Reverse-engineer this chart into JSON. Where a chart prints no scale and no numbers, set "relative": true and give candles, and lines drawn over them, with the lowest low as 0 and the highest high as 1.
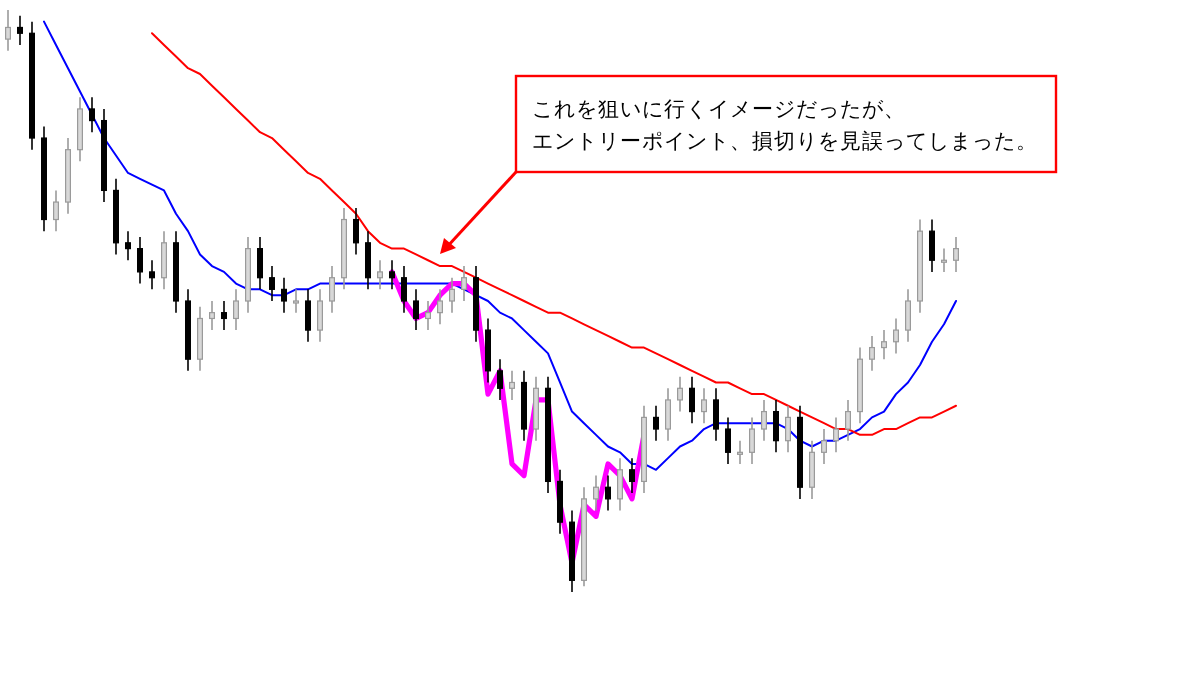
{
  "chart_data": {
    "type": "candlestick",
    "relative": true,
    "categories": [
      null,
      null,
      null,
      null,
      null,
      null,
      null,
      null,
      null,
      null,
      null,
      null,
      null,
      null,
      null,
      null,
      null,
      null,
      null,
      null,
      null,
      null,
      null,
      null,
      null,
      null,
      null,
      null,
      null,
      null,
      null,
      null,
      null,
      null,
      null,
      null,
      null,
      null,
      null,
      null,
      null,
      null,
      null,
      null,
      null,
      null,
      null,
      null,
      null,
      null,
      null,
      null,
      null,
      null,
      null,
      null,
      null,
      null,
      null,
      null,
      null,
      null,
      null,
      null,
      null,
      null,
      null,
      null,
      null,
      null,
      null,
      null,
      null,
      null,
      null,
      null,
      null,
      null,
      null,
      null
    ],
    "ohlc": [
      [
        0.95,
        1.0,
        0.93,
        0.97
      ],
      [
        0.97,
        0.99,
        0.94,
        0.96
      ],
      [
        0.96,
        0.98,
        0.76,
        0.78
      ],
      [
        0.78,
        0.8,
        0.62,
        0.64
      ],
      [
        0.64,
        0.69,
        0.62,
        0.67
      ],
      [
        0.67,
        0.78,
        0.65,
        0.76
      ],
      [
        0.76,
        0.85,
        0.74,
        0.83
      ],
      [
        0.83,
        0.85,
        0.79,
        0.81
      ],
      [
        0.81,
        0.83,
        0.67,
        0.69
      ],
      [
        0.69,
        0.71,
        0.58,
        0.6
      ],
      [
        0.6,
        0.62,
        0.57,
        0.59
      ],
      [
        0.59,
        0.61,
        0.53,
        0.55
      ],
      [
        0.55,
        0.57,
        0.52,
        0.54
      ],
      [
        0.54,
        0.62,
        0.52,
        0.6
      ],
      [
        0.6,
        0.62,
        0.48,
        0.5
      ],
      [
        0.5,
        0.52,
        0.38,
        0.4
      ],
      [
        0.4,
        0.49,
        0.38,
        0.47
      ],
      [
        0.47,
        0.5,
        0.45,
        0.48
      ],
      [
        0.48,
        0.5,
        0.45,
        0.47
      ],
      [
        0.47,
        0.52,
        0.45,
        0.5
      ],
      [
        0.5,
        0.61,
        0.48,
        0.59
      ],
      [
        0.59,
        0.61,
        0.52,
        0.54
      ],
      [
        0.54,
        0.56,
        0.5,
        0.52
      ],
      [
        0.52,
        0.54,
        0.48,
        0.5
      ],
      [
        0.5,
        0.52,
        0.48,
        0.5
      ],
      [
        0.5,
        0.52,
        0.43,
        0.45
      ],
      [
        0.45,
        0.52,
        0.43,
        0.5
      ],
      [
        0.5,
        0.56,
        0.48,
        0.54
      ],
      [
        0.54,
        0.66,
        0.52,
        0.64
      ],
      [
        0.64,
        0.66,
        0.58,
        0.6
      ],
      [
        0.6,
        0.62,
        0.52,
        0.54
      ],
      [
        0.54,
        0.57,
        0.52,
        0.55
      ],
      [
        0.55,
        0.57,
        0.52,
        0.54
      ],
      [
        0.54,
        0.56,
        0.48,
        0.5
      ],
      [
        0.5,
        0.52,
        0.45,
        0.47
      ],
      [
        0.47,
        0.5,
        0.45,
        0.48
      ],
      [
        0.48,
        0.52,
        0.46,
        0.5
      ],
      [
        0.5,
        0.54,
        0.48,
        0.52
      ],
      [
        0.52,
        0.56,
        0.5,
        0.54
      ],
      [
        0.54,
        0.56,
        0.43,
        0.45
      ],
      [
        0.45,
        0.47,
        0.36,
        0.38
      ],
      [
        0.38,
        0.4,
        0.33,
        0.35
      ],
      [
        0.35,
        0.38,
        0.33,
        0.36
      ],
      [
        0.36,
        0.38,
        0.26,
        0.28
      ],
      [
        0.28,
        0.37,
        0.26,
        0.35
      ],
      [
        0.35,
        0.37,
        0.17,
        0.19
      ],
      [
        0.19,
        0.21,
        0.1,
        0.12
      ],
      [
        0.12,
        0.14,
        0.0,
        0.02
      ],
      [
        0.02,
        0.18,
        0.01,
        0.16
      ],
      [
        0.16,
        0.2,
        0.14,
        0.18
      ],
      [
        0.18,
        0.2,
        0.14,
        0.16
      ],
      [
        0.16,
        0.23,
        0.14,
        0.21
      ],
      [
        0.21,
        0.23,
        0.17,
        0.19
      ],
      [
        0.19,
        0.32,
        0.17,
        0.3
      ],
      [
        0.3,
        0.32,
        0.26,
        0.28
      ],
      [
        0.28,
        0.35,
        0.26,
        0.33
      ],
      [
        0.33,
        0.37,
        0.31,
        0.35
      ],
      [
        0.35,
        0.37,
        0.29,
        0.31
      ],
      [
        0.31,
        0.35,
        0.29,
        0.33
      ],
      [
        0.33,
        0.35,
        0.26,
        0.28
      ],
      [
        0.28,
        0.3,
        0.22,
        0.24
      ],
      [
        0.24,
        0.26,
        0.22,
        0.24
      ],
      [
        0.24,
        0.3,
        0.22,
        0.28
      ],
      [
        0.28,
        0.33,
        0.26,
        0.31
      ],
      [
        0.31,
        0.33,
        0.24,
        0.26
      ],
      [
        0.26,
        0.32,
        0.24,
        0.3
      ],
      [
        0.3,
        0.32,
        0.16,
        0.18
      ],
      [
        0.18,
        0.26,
        0.16,
        0.24
      ],
      [
        0.24,
        0.28,
        0.22,
        0.26
      ],
      [
        0.26,
        0.3,
        0.24,
        0.28
      ],
      [
        0.28,
        0.33,
        0.26,
        0.31
      ],
      [
        0.31,
        0.42,
        0.29,
        0.4
      ],
      [
        0.4,
        0.44,
        0.38,
        0.42
      ],
      [
        0.42,
        0.45,
        0.4,
        0.43
      ],
      [
        0.43,
        0.47,
        0.41,
        0.45
      ],
      [
        0.45,
        0.52,
        0.43,
        0.5
      ],
      [
        0.5,
        0.64,
        0.48,
        0.62
      ],
      [
        0.62,
        0.64,
        0.55,
        0.57
      ],
      [
        0.57,
        0.59,
        0.55,
        0.57
      ],
      [
        0.57,
        0.61,
        0.55,
        0.59
      ]
    ],
    "series": [
      {
        "type": "line",
        "color": "#0000ff",
        "values": [
          null,
          null,
          null,
          0.98,
          0.94,
          0.9,
          0.86,
          0.82,
          0.78,
          0.75,
          0.72,
          0.71,
          0.7,
          0.69,
          0.65,
          0.62,
          0.58,
          0.56,
          0.55,
          0.53,
          0.52,
          0.52,
          0.51,
          0.51,
          0.52,
          0.52,
          0.53,
          0.53,
          0.53,
          0.53,
          0.53,
          0.53,
          0.53,
          0.53,
          0.53,
          0.53,
          0.53,
          0.53,
          0.52,
          0.51,
          0.5,
          0.48,
          0.47,
          0.45,
          0.43,
          0.41,
          0.36,
          0.31,
          0.29,
          0.27,
          0.25,
          0.24,
          0.22,
          0.22,
          0.21,
          0.23,
          0.25,
          0.26,
          0.28,
          0.29,
          0.29,
          0.29,
          0.29,
          0.29,
          0.29,
          0.28,
          0.26,
          0.25,
          0.26,
          0.26,
          0.27,
          0.28,
          0.3,
          0.31,
          0.34,
          0.36,
          0.39,
          0.43,
          0.46,
          0.5
        ]
      },
      {
        "type": "line",
        "color": "#ff0000",
        "values": [
          null,
          null,
          null,
          null,
          null,
          null,
          null,
          null,
          null,
          null,
          null,
          null,
          0.96,
          0.94,
          0.92,
          0.9,
          0.89,
          0.87,
          0.85,
          0.83,
          0.81,
          0.79,
          0.78,
          0.76,
          0.74,
          0.72,
          0.71,
          0.69,
          0.67,
          0.65,
          0.62,
          0.6,
          0.59,
          0.59,
          0.58,
          0.57,
          0.56,
          0.56,
          0.55,
          0.54,
          0.53,
          0.52,
          0.51,
          0.5,
          0.49,
          0.48,
          0.48,
          0.47,
          0.46,
          0.45,
          0.44,
          0.43,
          0.42,
          0.42,
          0.41,
          0.4,
          0.39,
          0.38,
          0.37,
          0.36,
          0.36,
          0.35,
          0.34,
          0.34,
          0.33,
          0.32,
          0.31,
          0.3,
          0.29,
          0.28,
          0.28,
          0.27,
          0.27,
          0.28,
          0.28,
          0.29,
          0.3,
          0.3,
          0.31,
          0.32
        ]
      },
      {
        "type": "line",
        "color": "#ff00ff",
        "values": [
          null,
          null,
          null,
          null,
          null,
          null,
          null,
          null,
          null,
          null,
          null,
          null,
          null,
          null,
          null,
          null,
          null,
          null,
          null,
          null,
          null,
          null,
          null,
          null,
          null,
          null,
          null,
          null,
          null,
          null,
          null,
          null,
          0.55,
          0.5,
          0.47,
          0.48,
          0.51,
          0.53,
          0.53,
          0.51,
          0.34,
          0.38,
          0.22,
          0.2,
          0.33,
          0.33,
          0.15,
          0.05,
          0.15,
          0.13,
          0.22,
          0.2,
          0.16,
          0.27,
          null,
          null,
          null,
          null,
          null,
          null,
          null,
          null,
          null,
          null,
          null,
          null,
          null,
          null,
          null,
          null,
          null,
          null,
          null,
          null,
          null,
          null,
          null,
          null,
          null,
          null
        ]
      }
    ],
    "annotations": [
      "これを狙いに行くイメージだったが、エントリーポイント、損切りを見誤ってしまった。"
    ]
  }
}
